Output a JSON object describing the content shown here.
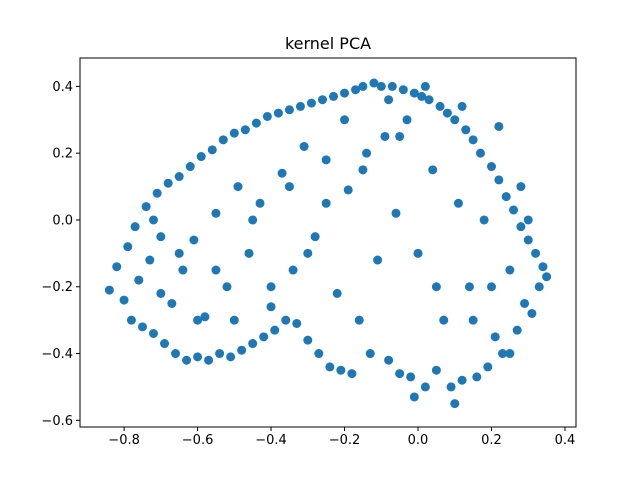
{
  "chart_data": {
    "type": "scatter",
    "title": "kernel PCA",
    "xlabel": "",
    "ylabel": "",
    "xlim": [
      -0.92,
      0.43
    ],
    "ylim": [
      -0.62,
      0.485
    ],
    "xticks": [
      -0.8,
      -0.6,
      -0.4,
      -0.2,
      0.0,
      0.2,
      0.4
    ],
    "yticks": [
      -0.6,
      -0.4,
      -0.2,
      0.0,
      0.2,
      0.4
    ],
    "xtick_labels": [
      "−0.8",
      "−0.6",
      "−0.4",
      "−0.2",
      "0.0",
      "0.2",
      "0.4"
    ],
    "ytick_labels": [
      "−0.6",
      "−0.4",
      "−0.2",
      "0.0",
      "0.2",
      "0.4"
    ],
    "grid": false,
    "legend": "none",
    "marker_color": "#1f77b4",
    "series": [
      {
        "points": [
          [
            -0.84,
            -0.21
          ],
          [
            -0.82,
            -0.14
          ],
          [
            -0.8,
            -0.24
          ],
          [
            -0.79,
            -0.08
          ],
          [
            -0.78,
            -0.3
          ],
          [
            -0.77,
            -0.02
          ],
          [
            -0.76,
            -0.18
          ],
          [
            -0.75,
            -0.32
          ],
          [
            -0.74,
            0.04
          ],
          [
            -0.73,
            -0.12
          ],
          [
            -0.72,
            -0.34
          ],
          [
            -0.71,
            0.08
          ],
          [
            -0.7,
            -0.05
          ],
          [
            -0.69,
            -0.37
          ],
          [
            -0.68,
            0.11
          ],
          [
            -0.67,
            -0.25
          ],
          [
            -0.66,
            -0.4
          ],
          [
            -0.65,
            0.13
          ],
          [
            -0.64,
            -0.15
          ],
          [
            -0.63,
            -0.42
          ],
          [
            -0.62,
            0.16
          ],
          [
            -0.61,
            -0.06
          ],
          [
            -0.6,
            -0.41
          ],
          [
            -0.59,
            0.19
          ],
          [
            -0.58,
            -0.29
          ],
          [
            -0.57,
            -0.42
          ],
          [
            -0.56,
            0.21
          ],
          [
            -0.55,
            0.02
          ],
          [
            -0.54,
            -0.4
          ],
          [
            -0.53,
            0.24
          ],
          [
            -0.52,
            -0.2
          ],
          [
            -0.51,
            -0.41
          ],
          [
            -0.5,
            0.26
          ],
          [
            -0.49,
            0.1
          ],
          [
            -0.48,
            -0.39
          ],
          [
            -0.47,
            0.27
          ],
          [
            -0.46,
            -0.1
          ],
          [
            -0.45,
            -0.37
          ],
          [
            -0.44,
            0.29
          ],
          [
            -0.43,
            0.05
          ],
          [
            -0.42,
            -0.35
          ],
          [
            -0.41,
            0.31
          ],
          [
            -0.4,
            -0.26
          ],
          [
            -0.39,
            -0.33
          ],
          [
            -0.38,
            0.32
          ],
          [
            -0.37,
            0.14
          ],
          [
            -0.36,
            -0.3
          ],
          [
            -0.35,
            0.33
          ],
          [
            -0.34,
            -0.15
          ],
          [
            -0.33,
            -0.31
          ],
          [
            -0.32,
            0.34
          ],
          [
            -0.31,
            0.22
          ],
          [
            -0.3,
            -0.36
          ],
          [
            -0.29,
            0.35
          ],
          [
            -0.28,
            -0.05
          ],
          [
            -0.27,
            -0.4
          ],
          [
            -0.26,
            0.36
          ],
          [
            -0.25,
            0.18
          ],
          [
            -0.24,
            -0.44
          ],
          [
            -0.23,
            0.37
          ],
          [
            -0.22,
            -0.22
          ],
          [
            -0.21,
            -0.45
          ],
          [
            -0.2,
            0.38
          ],
          [
            -0.19,
            0.09
          ],
          [
            -0.18,
            -0.46
          ],
          [
            -0.17,
            0.39
          ],
          [
            -0.16,
            -0.3
          ],
          [
            -0.15,
            0.4
          ],
          [
            -0.14,
            0.2
          ],
          [
            -0.13,
            -0.4
          ],
          [
            -0.12,
            0.41
          ],
          [
            -0.11,
            -0.12
          ],
          [
            -0.1,
            0.4
          ],
          [
            -0.09,
            0.25
          ],
          [
            -0.08,
            -0.42
          ],
          [
            -0.07,
            0.4
          ],
          [
            -0.06,
            0.02
          ],
          [
            -0.05,
            -0.46
          ],
          [
            -0.04,
            0.39
          ],
          [
            -0.03,
            0.3
          ],
          [
            -0.02,
            -0.47
          ],
          [
            -0.01,
            0.38
          ],
          [
            0.0,
            -0.1
          ],
          [
            0.01,
            0.37
          ],
          [
            0.02,
            -0.5
          ],
          [
            0.03,
            0.36
          ],
          [
            0.04,
            0.15
          ],
          [
            0.05,
            -0.45
          ],
          [
            0.06,
            0.34
          ],
          [
            0.07,
            -0.3
          ],
          [
            0.08,
            0.32
          ],
          [
            0.09,
            -0.5
          ],
          [
            0.1,
            0.3
          ],
          [
            0.11,
            0.05
          ],
          [
            0.12,
            -0.48
          ],
          [
            0.13,
            0.27
          ],
          [
            0.14,
            -0.2
          ],
          [
            0.15,
            0.24
          ],
          [
            0.16,
            -0.47
          ],
          [
            0.17,
            0.2
          ],
          [
            0.18,
            0.0
          ],
          [
            0.19,
            -0.44
          ],
          [
            0.2,
            0.16
          ],
          [
            0.21,
            -0.35
          ],
          [
            0.22,
            0.12
          ],
          [
            0.23,
            -0.4
          ],
          [
            0.24,
            0.07
          ],
          [
            0.25,
            -0.15
          ],
          [
            0.26,
            0.03
          ],
          [
            0.27,
            -0.33
          ],
          [
            0.28,
            -0.02
          ],
          [
            0.29,
            -0.25
          ],
          [
            0.3,
            -0.06
          ],
          [
            0.31,
            -0.28
          ],
          [
            0.32,
            -0.1
          ],
          [
            0.33,
            -0.2
          ],
          [
            0.34,
            -0.14
          ],
          [
            0.35,
            -0.17
          ],
          [
            0.1,
            -0.55
          ],
          [
            -0.01,
            -0.53
          ],
          [
            -0.2,
            0.3
          ],
          [
            -0.35,
            0.1
          ],
          [
            -0.45,
            0.0
          ],
          [
            -0.55,
            -0.15
          ],
          [
            -0.6,
            -0.3
          ],
          [
            -0.65,
            -0.1
          ],
          [
            -0.7,
            -0.22
          ],
          [
            -0.72,
            0.0
          ],
          [
            -0.5,
            -0.3
          ],
          [
            -0.4,
            -0.2
          ],
          [
            -0.3,
            -0.1
          ],
          [
            -0.25,
            0.05
          ],
          [
            -0.15,
            0.15
          ],
          [
            -0.05,
            0.25
          ],
          [
            0.05,
            -0.2
          ],
          [
            0.15,
            -0.3
          ],
          [
            0.25,
            -0.4
          ],
          [
            0.2,
            -0.2
          ],
          [
            0.3,
            0.0
          ],
          [
            0.28,
            0.1
          ],
          [
            0.22,
            0.28
          ],
          [
            0.12,
            0.34
          ],
          [
            0.02,
            0.4
          ],
          [
            -0.08,
            0.36
          ]
        ]
      }
    ]
  }
}
